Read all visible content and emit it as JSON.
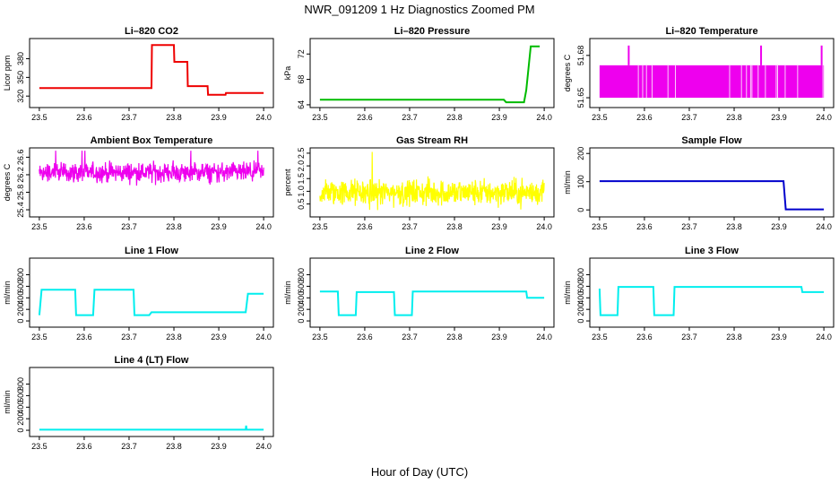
{
  "figure": {
    "title": "NWR_091209  1 Hz Diagnostics Zoomed PM",
    "xlabel": "Hour of Day (UTC)"
  },
  "chart_data": [
    {
      "type": "line",
      "title": "Li–820 CO2",
      "ylabel": "Licor ppm",
      "color": "#ee0000",
      "xlim": [
        23.5,
        24.0
      ],
      "ylim": [
        306,
        408
      ],
      "xticks": [
        "23.5",
        "23.6",
        "23.7",
        "23.8",
        "23.9",
        "24.0"
      ],
      "yticks": [
        320,
        350,
        380
      ],
      "series": [
        {
          "x": [
            23.5,
            23.75,
            23.751,
            23.8,
            23.801,
            23.83,
            23.831,
            23.875,
            23.876,
            23.915,
            23.916,
            24.0
          ],
          "y": [
            333,
            333,
            402,
            402,
            375,
            375,
            336,
            336,
            322,
            322,
            325,
            325
          ]
        }
      ]
    },
    {
      "type": "line",
      "title": "Li–820 Pressure",
      "ylabel": "kPa",
      "color": "#00bb00",
      "xlim": [
        23.5,
        24.0
      ],
      "ylim": [
        64,
        74
      ],
      "xticks": [
        "23.5",
        "23.6",
        "23.7",
        "23.8",
        "23.9",
        "24.0"
      ],
      "yticks": [
        64,
        68,
        72
      ],
      "series": [
        {
          "x": [
            23.5,
            23.91,
            23.915,
            23.955,
            23.96,
            23.97,
            23.99
          ],
          "y": [
            64.8,
            64.8,
            64.4,
            64.4,
            66.3,
            73.2,
            73.2
          ]
        }
      ]
    },
    {
      "type": "line",
      "title": "Li–820 Temperature",
      "ylabel": "degrees C",
      "color": "#ee00ee",
      "xlim": [
        23.5,
        24.0
      ],
      "ylim": [
        51.645,
        51.69
      ],
      "xticks": [
        "23.5",
        "23.6",
        "23.7",
        "23.8",
        "23.9",
        "24.0"
      ],
      "yticks": [
        51.65,
        51.68
      ],
      "ytick_labels": [
        "51.65",
        "51.68"
      ],
      "levels": [
        51.65,
        51.673
      ],
      "spikes": [
        23.565,
        23.86,
        23.995
      ],
      "spike_top": 51.687
    },
    {
      "type": "line",
      "title": "Ambient Box Temperature",
      "ylabel": "degrees C",
      "color": "#ee00ee",
      "xlim": [
        23.5,
        24.0
      ],
      "ylim": [
        25.3,
        26.75
      ],
      "xticks": [
        "23.5",
        "23.6",
        "23.7",
        "23.8",
        "23.9",
        "24.0"
      ],
      "yticks": [
        25.4,
        25.8,
        26.2,
        26.6
      ],
      "center": 26.25,
      "spread": 0.3
    },
    {
      "type": "line",
      "title": "Gas Stream RH",
      "ylabel": "percent",
      "color": "#ffff00",
      "xlim": [
        23.5,
        24.0
      ],
      "ylim": [
        0.1,
        2.6
      ],
      "xticks": [
        "23.5",
        "23.6",
        "23.7",
        "23.8",
        "23.9",
        "24.0"
      ],
      "yticks": [
        0.5,
        1.0,
        1.5,
        2.0,
        2.5
      ],
      "ytick_labels": [
        "0.5",
        "1.0",
        "1.5",
        "2.0",
        "2.5"
      ],
      "center": 0.95,
      "spread": 0.7
    },
    {
      "type": "line",
      "title": "Sample Flow",
      "ylabel": "ml/min",
      "color": "#0000cc",
      "xlim": [
        23.5,
        24.0
      ],
      "ylim": [
        -15,
        210
      ],
      "xticks": [
        "23.5",
        "23.6",
        "23.7",
        "23.8",
        "23.9",
        "24.0"
      ],
      "yticks": [
        0,
        100,
        200
      ],
      "series": [
        {
          "x": [
            23.5,
            23.91,
            23.915,
            24.0
          ],
          "y": [
            102,
            102,
            2,
            2
          ]
        }
      ]
    },
    {
      "type": "line",
      "title": "Line 1 Flow",
      "ylabel": "ml/min",
      "color": "#00eeee",
      "xlim": [
        23.5,
        24.0
      ],
      "ylim": [
        -60,
        1040
      ],
      "xticks": [
        "23.5",
        "23.6",
        "23.7",
        "23.8",
        "23.9",
        "24.0"
      ],
      "yticks": [
        0,
        200,
        400,
        600,
        800
      ],
      "series": [
        {
          "x": [
            23.5,
            23.505,
            23.58,
            23.582,
            23.62,
            23.623,
            23.71,
            23.712,
            23.745,
            23.75,
            23.96,
            23.965,
            24.0
          ],
          "y": [
            100,
            540,
            540,
            100,
            100,
            540,
            540,
            100,
            100,
            150,
            150,
            470,
            470
          ]
        }
      ]
    },
    {
      "type": "line",
      "title": "Line 2 Flow",
      "ylabel": "ml/min",
      "color": "#00eeee",
      "xlim": [
        23.5,
        24.0
      ],
      "ylim": [
        -60,
        1040
      ],
      "xticks": [
        "23.5",
        "23.6",
        "23.7",
        "23.8",
        "23.9",
        "24.0"
      ],
      "yticks": [
        0,
        200,
        400,
        600,
        800
      ],
      "series": [
        {
          "x": [
            23.5,
            23.54,
            23.542,
            23.58,
            23.582,
            23.665,
            23.667,
            23.705,
            23.707,
            23.96,
            23.962,
            24.0
          ],
          "y": [
            510,
            510,
            100,
            100,
            500,
            500,
            100,
            100,
            510,
            510,
            400,
            400
          ]
        }
      ]
    },
    {
      "type": "line",
      "title": "Line 3 Flow",
      "ylabel": "ml/min",
      "color": "#00eeee",
      "xlim": [
        23.5,
        24.0
      ],
      "ylim": [
        -60,
        1040
      ],
      "xticks": [
        "23.5",
        "23.6",
        "23.7",
        "23.8",
        "23.9",
        "24.0"
      ],
      "yticks": [
        0,
        200,
        400,
        600,
        800
      ],
      "series": [
        {
          "x": [
            23.5,
            23.502,
            23.54,
            23.542,
            23.62,
            23.622,
            23.665,
            23.667,
            23.95,
            23.952,
            24.0
          ],
          "y": [
            560,
            100,
            100,
            590,
            590,
            100,
            100,
            590,
            590,
            500,
            500
          ]
        }
      ]
    },
    {
      "type": "line",
      "title": "Line 4 (LT) Flow",
      "ylabel": "ml/min",
      "color": "#00eeee",
      "xlim": [
        23.5,
        24.0
      ],
      "ylim": [
        -60,
        1040
      ],
      "xticks": [
        "23.5",
        "23.6",
        "23.7",
        "23.8",
        "23.9",
        "24.0"
      ],
      "yticks": [
        0,
        200,
        400,
        600,
        800
      ],
      "series": [
        {
          "x": [
            23.5,
            23.96,
            23.961,
            23.962,
            24.0
          ],
          "y": [
            10,
            10,
            80,
            10,
            10
          ]
        }
      ]
    }
  ]
}
